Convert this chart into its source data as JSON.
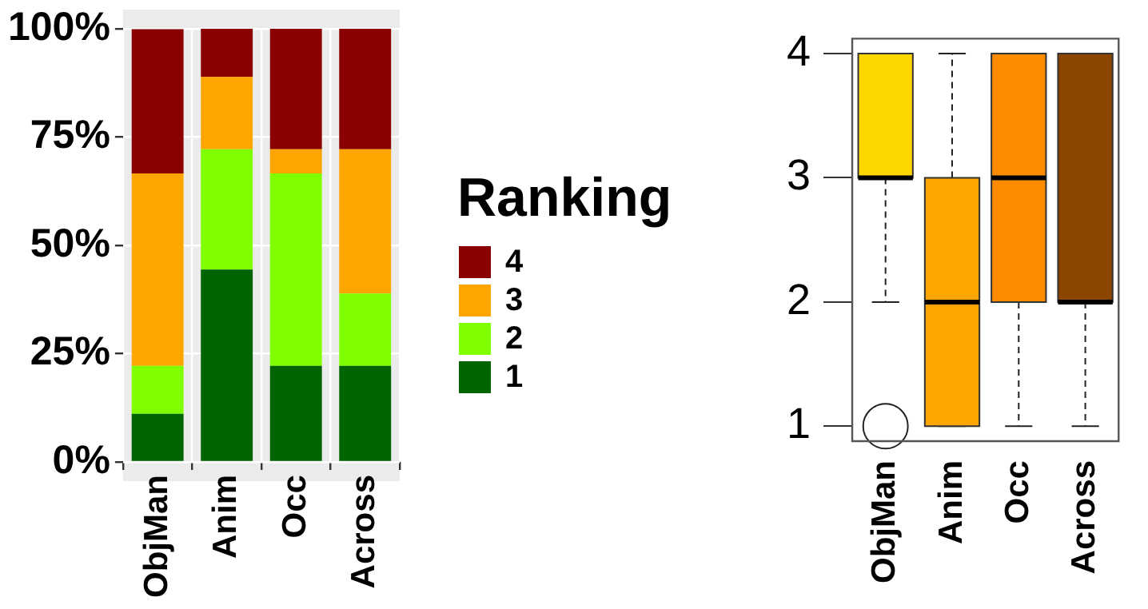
{
  "chart_data": [
    {
      "type": "bar",
      "stacked": true,
      "categories": [
        "ObjMan",
        "Anim",
        "Occ",
        "Across"
      ],
      "series": [
        {
          "name": "1",
          "color": "#006400",
          "values": [
            11.1,
            44.4,
            22.2,
            22.2
          ]
        },
        {
          "name": "2",
          "color": "#7fff00",
          "values": [
            11.1,
            27.8,
            44.4,
            16.7
          ]
        },
        {
          "name": "3",
          "color": "#ffa500",
          "values": [
            44.4,
            16.7,
            5.6,
            33.3
          ]
        },
        {
          "name": "4",
          "color": "#8b0000",
          "values": [
            33.3,
            11.1,
            27.8,
            27.8
          ]
        }
      ],
      "ylim": [
        0,
        100
      ],
      "yticks": [
        {
          "value": 0,
          "label": "0%"
        },
        {
          "value": 25,
          "label": "25%"
        },
        {
          "value": 50,
          "label": "50%"
        },
        {
          "value": 75,
          "label": "75%"
        },
        {
          "value": 100,
          "label": "100%"
        }
      ],
      "grid": true,
      "legend": "right",
      "legend_title": "Ranking"
    },
    {
      "type": "box",
      "categories": [
        "ObjMan",
        "Anim",
        "Occ",
        "Across"
      ],
      "colors": [
        "#ffd700",
        "#ffa500",
        "#ff8c00",
        "#8b4500"
      ],
      "boxes": [
        {
          "low": 2,
          "q1": 3,
          "median": 3,
          "q3": 4,
          "high": 4,
          "outliers": [
            1
          ]
        },
        {
          "low": 1,
          "q1": 1,
          "median": 2,
          "q3": 3,
          "high": 4
        },
        {
          "low": 1,
          "q1": 2,
          "median": 3,
          "q3": 4,
          "high": 4
        },
        {
          "low": 1,
          "q1": 2,
          "median": 2,
          "q3": 4,
          "high": 4
        }
      ],
      "ylim": [
        0.88,
        4.12
      ],
      "yticks": [
        1,
        2,
        3,
        4
      ],
      "grid": false
    }
  ]
}
